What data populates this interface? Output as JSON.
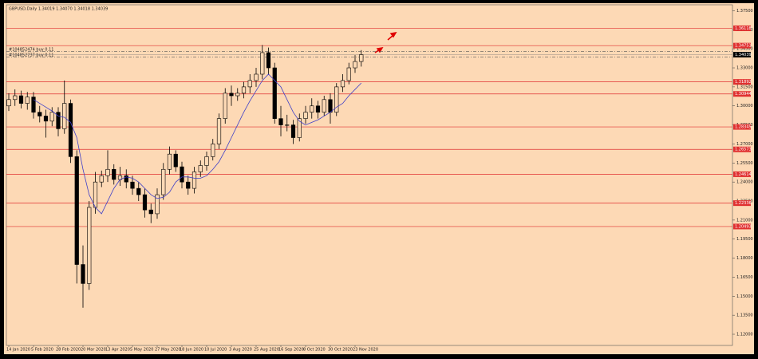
{
  "chart_data": {
    "type": "candlestick",
    "title": "GBPUSD,Daily  1.34019 1.34070 1.34018 1.34039",
    "categories": [
      "14 Jan 2020",
      null,
      null,
      null,
      "5 Feb 2020",
      null,
      null,
      null,
      "28 Feb 2020",
      null,
      null,
      null,
      "20 Mar 2020",
      null,
      null,
      null,
      "13 Apr 2020",
      null,
      null,
      null,
      "5 May 2020",
      null,
      null,
      null,
      "27 May 2020",
      null,
      null,
      null,
      "18 Jun 2020",
      null,
      null,
      null,
      "10 Jul 2020",
      null,
      null,
      null,
      "3 Aug 2020",
      null,
      null,
      null,
      "25 Aug 2020",
      null,
      null,
      null,
      "16 Sep 2020",
      null,
      null,
      null,
      "8 Oct 2020",
      null,
      null,
      null,
      "30 Oct 2020",
      null,
      null,
      null,
      "23 Nov 2020",
      null
    ],
    "open": [
      1.3,
      1.305,
      1.308,
      1.302,
      1.307,
      1.295,
      1.292,
      1.288,
      1.295,
      1.282,
      1.302,
      1.26,
      1.175,
      1.16,
      1.22,
      1.24,
      1.245,
      1.25,
      1.242,
      1.245,
      1.24,
      1.235,
      1.23,
      1.218,
      1.215,
      1.23,
      1.25,
      1.262,
      1.252,
      1.24,
      1.235,
      1.248,
      1.253,
      1.26,
      1.27,
      1.29,
      1.31,
      1.308,
      1.31,
      1.315,
      1.32,
      1.325,
      1.342,
      1.33,
      1.29,
      1.285,
      1.285,
      1.275,
      1.29,
      1.295,
      1.3,
      1.295,
      1.305,
      1.295,
      1.315,
      1.32,
      1.33,
      1.335
    ],
    "high": [
      1.31,
      1.313,
      1.312,
      1.311,
      1.311,
      1.3,
      1.297,
      1.299,
      1.299,
      1.32,
      1.305,
      1.265,
      1.19,
      1.225,
      1.248,
      1.249,
      1.265,
      1.254,
      1.252,
      1.25,
      1.245,
      1.24,
      1.235,
      1.223,
      1.235,
      1.255,
      1.268,
      1.265,
      1.256,
      1.245,
      1.252,
      1.257,
      1.264,
      1.274,
      1.294,
      1.314,
      1.316,
      1.314,
      1.319,
      1.325,
      1.33,
      1.348,
      1.346,
      1.334,
      1.3,
      1.293,
      1.289,
      1.294,
      1.3,
      1.306,
      1.304,
      1.308,
      1.31,
      1.318,
      1.325,
      1.334,
      1.34,
      1.344
    ],
    "low": [
      1.296,
      1.3,
      1.298,
      1.297,
      1.29,
      1.287,
      1.275,
      1.284,
      1.276,
      1.278,
      1.255,
      1.16,
      1.1409,
      1.155,
      1.215,
      1.236,
      1.24,
      1.238,
      1.237,
      1.235,
      1.23,
      1.225,
      1.212,
      1.2076,
      1.211,
      1.226,
      1.246,
      1.248,
      1.235,
      1.23,
      1.231,
      1.244,
      1.249,
      1.257,
      1.266,
      1.286,
      1.3,
      1.304,
      1.306,
      1.31,
      1.315,
      1.321,
      1.325,
      1.286,
      1.276,
      1.28,
      1.27,
      1.272,
      1.286,
      1.29,
      1.29,
      1.292,
      1.286,
      1.292,
      1.311,
      1.317,
      1.326,
      1.331
    ],
    "close": [
      1.305,
      1.308,
      1.302,
      1.307,
      1.295,
      1.292,
      1.288,
      1.295,
      1.282,
      1.302,
      1.26,
      1.175,
      1.16,
      1.22,
      1.24,
      1.245,
      1.25,
      1.242,
      1.245,
      1.24,
      1.235,
      1.23,
      1.218,
      1.215,
      1.23,
      1.25,
      1.262,
      1.252,
      1.24,
      1.235,
      1.248,
      1.253,
      1.26,
      1.27,
      1.29,
      1.31,
      1.308,
      1.31,
      1.315,
      1.32,
      1.325,
      1.342,
      1.33,
      1.29,
      1.285,
      1.285,
      1.275,
      1.29,
      1.295,
      1.3,
      1.295,
      1.305,
      1.295,
      1.315,
      1.32,
      1.33,
      1.335,
      1.3404
    ],
    "up_color": "#fdd9b5",
    "down_color": "#000000",
    "wick_color": "#000000",
    "ma": {
      "color": "#4040c8",
      "values": [
        null,
        null,
        null,
        null,
        1.305,
        1.302,
        1.299,
        1.296,
        1.292,
        1.291,
        1.287,
        1.275,
        1.25,
        1.23,
        1.22,
        1.215,
        1.225,
        1.235,
        1.242,
        1.244,
        1.243,
        1.24,
        1.235,
        1.23,
        1.227,
        1.228,
        1.232,
        1.24,
        1.244,
        1.244,
        1.243,
        1.243,
        1.245,
        1.25,
        1.256,
        1.265,
        1.275,
        1.285,
        1.295,
        1.304,
        1.312,
        1.32,
        1.325,
        1.32,
        1.315,
        1.305,
        1.295,
        1.288,
        1.285,
        1.287,
        1.289,
        1.292,
        1.295,
        1.299,
        1.302,
        1.308,
        1.313,
        1.318
      ]
    },
    "ylim": [
      1.1112,
      1.3797
    ],
    "yticks": [
      {
        "value": 1.12,
        "label": "1.12000"
      },
      {
        "value": 1.135,
        "label": "1.13500"
      },
      {
        "value": 1.15,
        "label": "1.15000"
      },
      {
        "value": 1.165,
        "label": "1.16500"
      },
      {
        "value": 1.18,
        "label": "1.18000"
      },
      {
        "value": 1.195,
        "label": "1.19500"
      },
      {
        "value": 1.21,
        "label": "1.21000"
      },
      {
        "value": 1.225,
        "label": "1.22500"
      },
      {
        "value": 1.24,
        "label": "1.24000"
      },
      {
        "value": 1.255,
        "label": "1.25500"
      },
      {
        "value": 1.27,
        "label": "1.27000"
      },
      {
        "value": 1.285,
        "label": "1.28500"
      },
      {
        "value": 1.3,
        "label": "1.30000"
      },
      {
        "value": 1.315,
        "label": "1.31500"
      },
      {
        "value": 1.33,
        "label": "1.33000"
      },
      {
        "value": 1.345,
        "label": "1.34500"
      },
      {
        "value": 1.36,
        "label": "1.36000"
      },
      {
        "value": 1.375,
        "label": "1.37500"
      }
    ],
    "levels": {
      "color": "#e03030",
      "values": [
        1.36118,
        1.34751,
        1.31892,
        1.30944,
        1.28345,
        1.26573,
        1.24614,
        1.22336,
        1.20493
      ]
    },
    "current_price": 1.34039,
    "orders": [
      {
        "label": "#104852474 buy 0.11",
        "value": 1.3429
      },
      {
        "label": "#104852737 buy 0.11",
        "value": 1.3385
      }
    ]
  }
}
